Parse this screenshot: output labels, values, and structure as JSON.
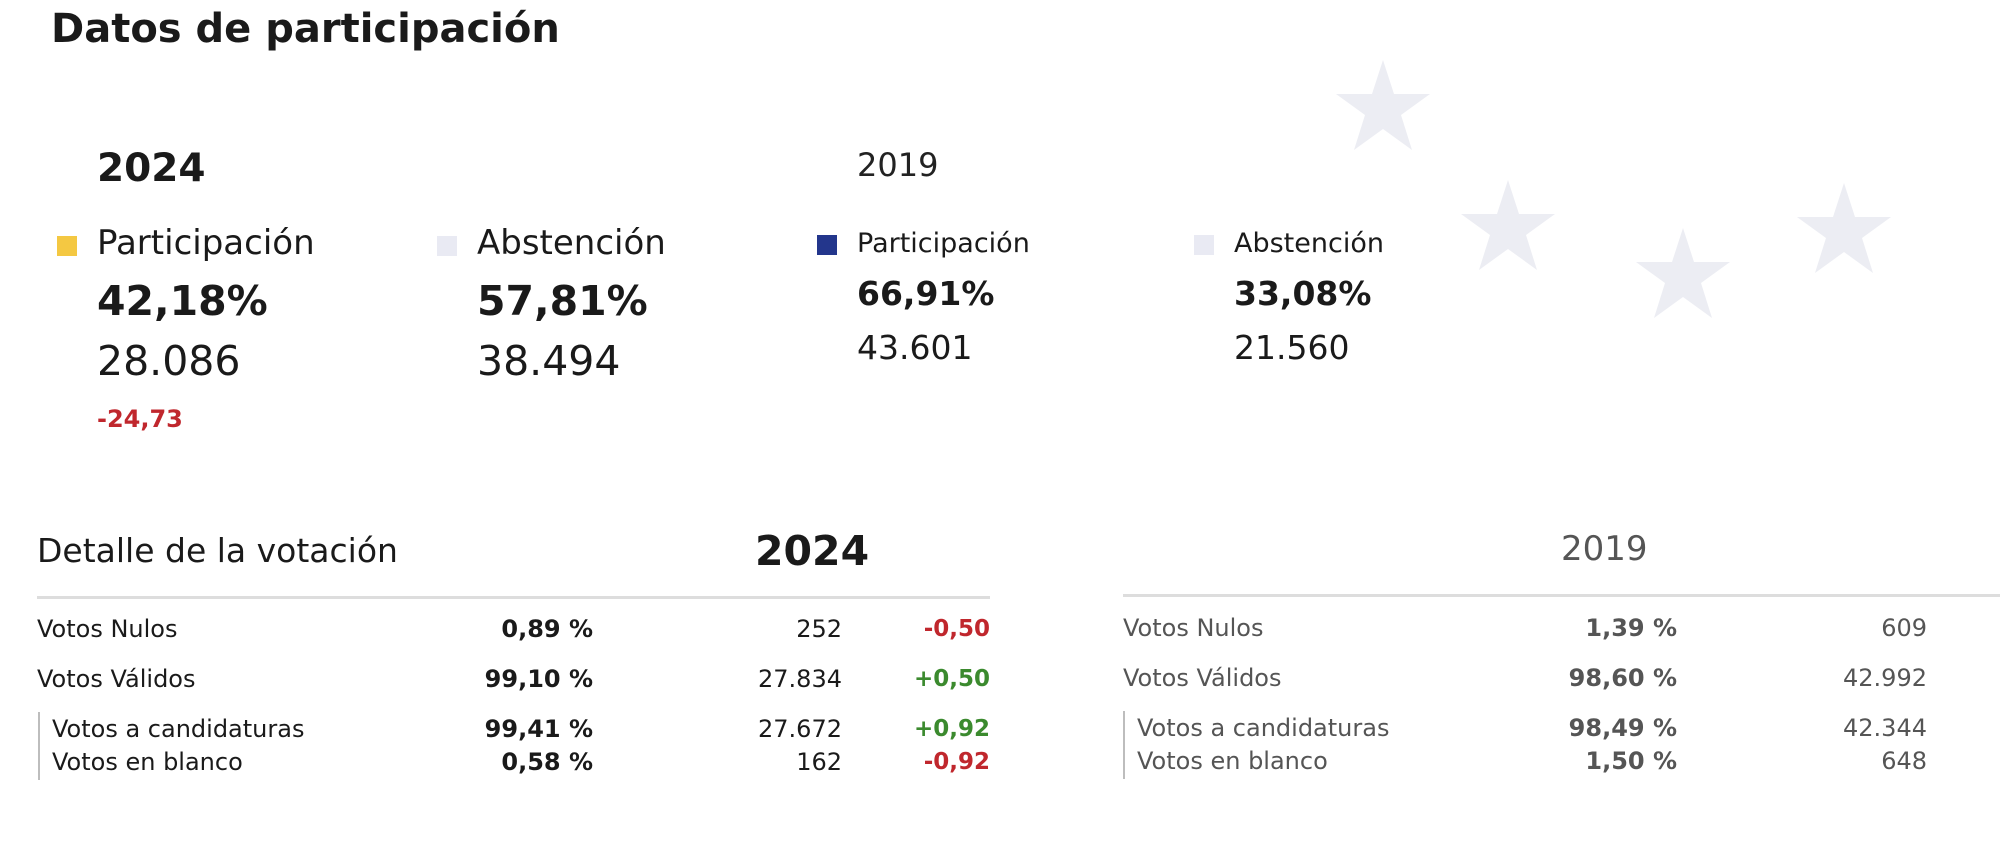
{
  "page_title": "Datos de participación",
  "colors": {
    "participacion_2024": "#f4c842",
    "participacion_2019": "#23368c",
    "abstencion": "#e9eaf3",
    "negative": "#c0272d",
    "positive": "#3b8a2e",
    "background_star": "#ecedf3"
  },
  "participation_2024": {
    "year": "2024",
    "participacion": {
      "label": "Participación",
      "pct": "42,18%",
      "count": "28.086",
      "diff": "-24,73"
    },
    "abstencion": {
      "label": "Abstención",
      "pct": "57,81%",
      "count": "38.494"
    }
  },
  "participation_2019": {
    "year": "2019",
    "participacion": {
      "label": "Participación",
      "pct": "66,91%",
      "count": "43.601"
    },
    "abstencion": {
      "label": "Abstención",
      "pct": "33,08%",
      "count": "21.560"
    }
  },
  "detail": {
    "title": "Detalle de la votación",
    "t2024": {
      "year": "2024",
      "rows": [
        {
          "label": "Votos Nulos",
          "pct": "0,89 %",
          "count": "252",
          "diff": "-0,50"
        },
        {
          "label": "Votos Válidos",
          "pct": "99,10 %",
          "count": "27.834",
          "diff": "+0,50"
        },
        {
          "label": "Votos a candidaturas",
          "pct": "99,41 %",
          "count": "27.672",
          "diff": "+0,92"
        },
        {
          "label": "Votos en blanco",
          "pct": "0,58 %",
          "count": "162",
          "diff": "-0,92"
        }
      ]
    },
    "t2019": {
      "year": "2019",
      "rows": [
        {
          "label": "Votos Nulos",
          "pct": "1,39 %",
          "count": "609"
        },
        {
          "label": "Votos Válidos",
          "pct": "98,60 %",
          "count": "42.992"
        },
        {
          "label": "Votos a candidaturas",
          "pct": "98,49 %",
          "count": "42.344"
        },
        {
          "label": "Votos en blanco",
          "pct": "1,50 %",
          "count": "648"
        }
      ]
    }
  }
}
